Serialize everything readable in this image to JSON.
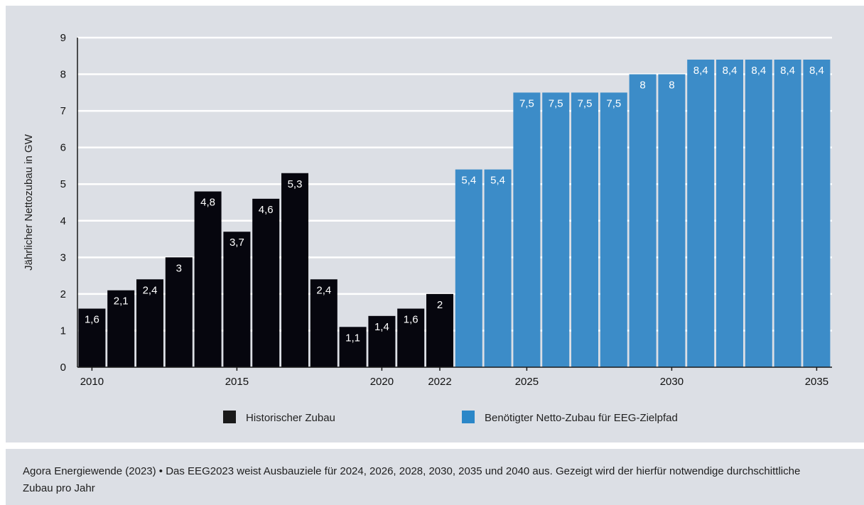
{
  "chart_data": {
    "type": "bar",
    "ylabel": "Jährlicher Nettozubau in GW",
    "ylim": [
      0,
      9
    ],
    "yticks": [
      "0",
      "1",
      "2",
      "3",
      "4",
      "5",
      "6",
      "7",
      "8",
      "9"
    ],
    "x": [
      2010,
      2011,
      2012,
      2013,
      2014,
      2015,
      2016,
      2017,
      2018,
      2019,
      2020,
      2021,
      2022,
      2023,
      2024,
      2025,
      2026,
      2027,
      2028,
      2029,
      2030,
      2031,
      2032,
      2033,
      2034,
      2035
    ],
    "xticks": [
      {
        "year": 2010,
        "label": "2010"
      },
      {
        "year": 2015,
        "label": "2015"
      },
      {
        "year": 2020,
        "label": "2020"
      },
      {
        "year": 2022,
        "label": "2022"
      },
      {
        "year": 2025,
        "label": "2025"
      },
      {
        "year": 2030,
        "label": "2030"
      },
      {
        "year": 2035,
        "label": "2035"
      }
    ],
    "grid": true,
    "legend_position": "bottom",
    "series": [
      {
        "name": "Historischer Zubau",
        "color": "#06060e",
        "x": [
          2010,
          2011,
          2012,
          2013,
          2014,
          2015,
          2016,
          2017,
          2018,
          2019,
          2020,
          2021,
          2022
        ],
        "values": [
          1.6,
          2.1,
          2.4,
          3.0,
          4.8,
          3.7,
          4.6,
          5.3,
          2.4,
          1.1,
          1.4,
          1.6,
          2.0
        ],
        "labels": [
          "1,6",
          "2,1",
          "2,4",
          "3",
          "4,8",
          "3,7",
          "4,6",
          "5,3",
          "2,4",
          "1,1",
          "1,4",
          "1,6",
          "2"
        ]
      },
      {
        "name": "Benötigter Netto-Zubau für EEG-Zielpfad",
        "color": "#3c8cc8",
        "x": [
          2023,
          2024,
          2025,
          2026,
          2027,
          2028,
          2029,
          2030,
          2031,
          2032,
          2033,
          2034,
          2035
        ],
        "values": [
          5.4,
          5.4,
          7.5,
          7.5,
          7.5,
          7.5,
          8.0,
          8.0,
          8.4,
          8.4,
          8.4,
          8.4,
          8.4
        ],
        "labels": [
          "5,4",
          "5,4",
          "7,5",
          "7,5",
          "7,5",
          "7,5",
          "8",
          "8",
          "8,4",
          "8,4",
          "8,4",
          "8,4",
          "8,4"
        ]
      }
    ],
    "legend_marker_colors": [
      "#1a1a1a",
      "#2b87c8"
    ],
    "grid_color": "#ffffff",
    "axis_color": "#1a1a1a"
  },
  "source": {
    "text": "Agora Energiewende (2023) • Das EEG2023 weist Ausbauziele für 2024, 2026, 2028, 2030, 2035 und 2040 aus. Gezeigt wird der hierfür notwendige durchschittliche Zubau pro Jahr"
  }
}
